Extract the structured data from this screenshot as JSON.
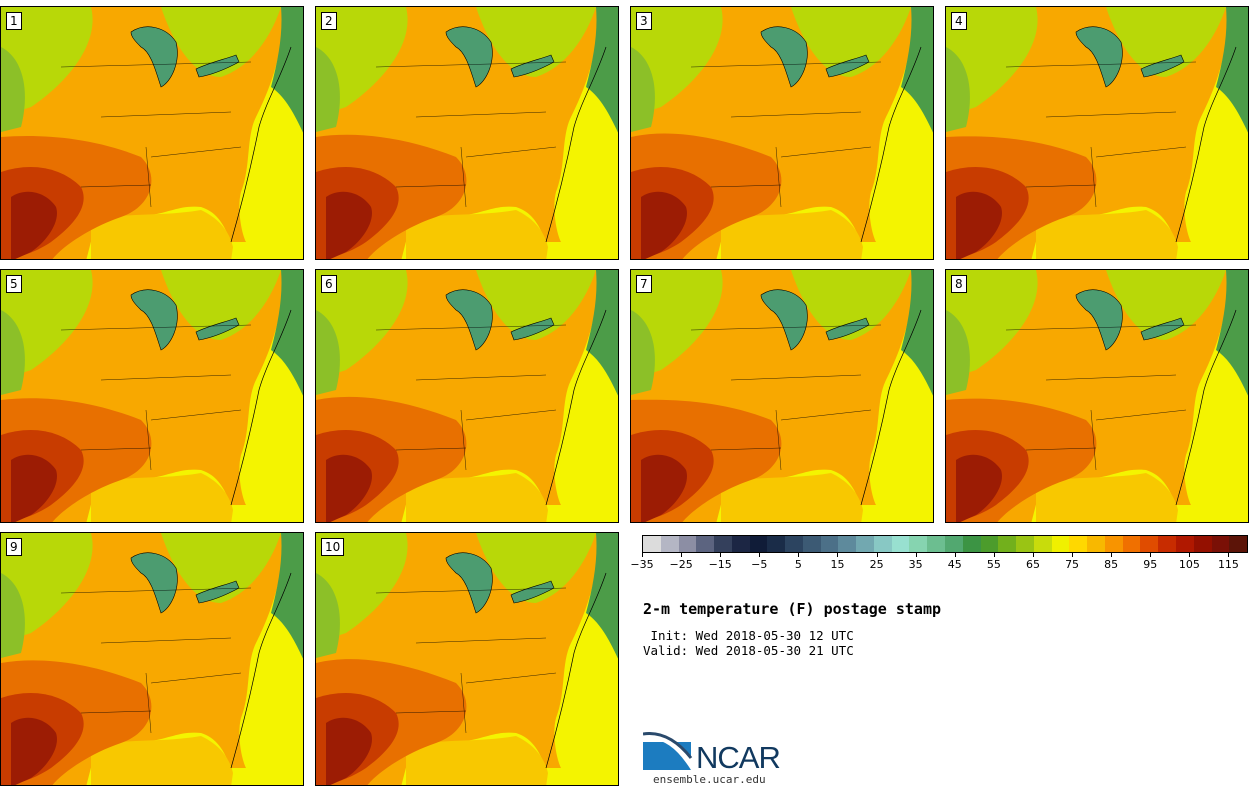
{
  "panels": [
    {
      "label": "1"
    },
    {
      "label": "2"
    },
    {
      "label": "3"
    },
    {
      "label": "4"
    },
    {
      "label": "5"
    },
    {
      "label": "6"
    },
    {
      "label": "7"
    },
    {
      "label": "8"
    },
    {
      "label": "9"
    },
    {
      "label": "10"
    }
  ],
  "colorbar": {
    "colors": [
      "#dcdcdc",
      "#b4b6c4",
      "#8c8ea4",
      "#5c6480",
      "#34405c",
      "#1c2644",
      "#101c38",
      "#1a2c48",
      "#2c4460",
      "#3c5a74",
      "#4c7088",
      "#5e8a9c",
      "#72a8b0",
      "#88c8c4",
      "#98e0d0",
      "#86d4b0",
      "#6cbe90",
      "#52a870",
      "#3c9444",
      "#4c9c2c",
      "#72b01c",
      "#9ac414",
      "#c8dc0c",
      "#f0f000",
      "#ffd800",
      "#f8b800",
      "#f89400",
      "#f07000",
      "#e04c00",
      "#c82c00",
      "#b01800",
      "#941000",
      "#7a1006",
      "#5c1408"
    ],
    "min": -35,
    "max": 120,
    "ticks": [
      -35,
      -25,
      -15,
      -5,
      5,
      15,
      25,
      35,
      45,
      55,
      65,
      75,
      85,
      95,
      105,
      115
    ],
    "tick_labels": [
      "−35",
      "−25",
      "−15",
      "−5",
      "5",
      "15",
      "25",
      "35",
      "45",
      "55",
      "65",
      "75",
      "85",
      "95",
      "105",
      "115"
    ]
  },
  "title": "2-m temperature (F) postage stamp",
  "init": " Init: Wed 2018-05-30 12 UTC",
  "valid": "Valid: Wed 2018-05-30 21 UTC",
  "logo": {
    "text": "NCAR",
    "url": "ensemble.ucar.edu"
  },
  "map_colors": {
    "ocean": "#f4f400",
    "gulf": "#f8c800",
    "land_warm": "#f8a800",
    "land_hot": "#e87000",
    "land_vhot": "#c83c00",
    "land_extreme": "#9c1c04",
    "land_cool": "#b8d808",
    "land_cooler": "#8cc028",
    "atlantic_cool": "#4c9c48",
    "lake": "#4c9c70"
  }
}
